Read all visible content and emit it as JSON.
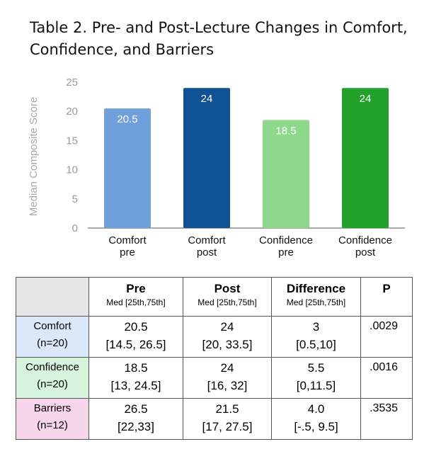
{
  "title_lines": [
    "Table 2. Pre- and Post-Lecture Changes in Comfort,",
    "Confidence, and Barriers"
  ],
  "chart_data": {
    "type": "bar",
    "categories": [
      [
        "Comfort",
        "pre"
      ],
      [
        "Comfort",
        "post"
      ],
      [
        "Confidence",
        "pre"
      ],
      [
        "Confidence",
        "post"
      ]
    ],
    "values": [
      20.5,
      24,
      18.5,
      24
    ],
    "value_labels": [
      "20.5",
      "24",
      "18.5",
      "24"
    ],
    "colors": [
      "#6fa0dc",
      "#0f5294",
      "#8fd88b",
      "#22a22b"
    ],
    "ylabel": "Median Composite Score",
    "ylim": [
      0,
      25
    ],
    "yticks": [
      0,
      5,
      10,
      15,
      20,
      25
    ],
    "grid": false
  },
  "table": {
    "headers": [
      {
        "main": "",
        "sub": ""
      },
      {
        "main": "Pre",
        "sub": "Med [25th,75th]"
      },
      {
        "main": "Post",
        "sub": "Med [25th,75th]"
      },
      {
        "main": "Difference",
        "sub": "Med [25th,75th]"
      },
      {
        "main": "P",
        "sub": ""
      }
    ],
    "rows": [
      {
        "label": [
          "Comfort",
          "(n=20)"
        ],
        "pre": [
          "20.5",
          "[14.5, 26.5]"
        ],
        "post": [
          "24",
          "[20, 33.5]"
        ],
        "diff": [
          "3",
          "[0.5,10]"
        ],
        "p": ".0029"
      },
      {
        "label": [
          "Confidence",
          "(n=20)"
        ],
        "pre": [
          "18.5",
          "[13, 24.5]"
        ],
        "post": [
          "24",
          "[16, 32]"
        ],
        "diff": [
          "5.5",
          "[0,11.5]"
        ],
        "p": ".0016"
      },
      {
        "label": [
          "Barriers",
          "(n=12)"
        ],
        "pre": [
          "26.5",
          "[22,33]"
        ],
        "post": [
          "21.5",
          "[17, 27.5]"
        ],
        "diff": [
          "4.0",
          "[-.5, 9.5]"
        ],
        "p": ".3535"
      }
    ]
  }
}
